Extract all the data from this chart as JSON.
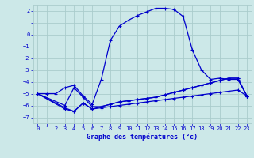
{
  "xlabel": "Graphe des températures (°c)",
  "bg_color": "#cce8e8",
  "grid_color": "#aacccc",
  "line_color": "#0000cc",
  "xlim": [
    -0.5,
    23.5
  ],
  "ylim": [
    -7.5,
    2.5
  ],
  "xticks": [
    0,
    1,
    2,
    3,
    4,
    5,
    6,
    7,
    8,
    9,
    10,
    11,
    12,
    13,
    14,
    15,
    16,
    17,
    18,
    19,
    20,
    21,
    22,
    23
  ],
  "yticks": [
    -7,
    -6,
    -5,
    -4,
    -3,
    -2,
    -1,
    0,
    1,
    2
  ],
  "line1_x": [
    0,
    1,
    2,
    3,
    4,
    5,
    6,
    7,
    8,
    9,
    10,
    11,
    12,
    13,
    14,
    15,
    16,
    17,
    18,
    19,
    20,
    21,
    22,
    23
  ],
  "line1_y": [
    -5.0,
    -5.0,
    -5.0,
    -4.5,
    -4.3,
    -5.2,
    -5.9,
    -3.8,
    -0.5,
    0.7,
    1.2,
    1.6,
    1.9,
    2.2,
    2.2,
    2.1,
    1.5,
    -1.3,
    -3.0,
    -3.8,
    -3.7,
    -3.8,
    -3.8,
    -5.2
  ],
  "line2_x": [
    0,
    3,
    4,
    5,
    6,
    7,
    8,
    9,
    10,
    11,
    12,
    13,
    14,
    15,
    16,
    17,
    18,
    19,
    20,
    21,
    22,
    23
  ],
  "line2_y": [
    -5.0,
    -6.0,
    -4.5,
    -5.3,
    -6.1,
    -6.1,
    -5.9,
    -5.7,
    -5.6,
    -5.5,
    -5.4,
    -5.3,
    -5.1,
    -4.9,
    -4.7,
    -4.5,
    -4.3,
    -4.1,
    -3.9,
    -3.7,
    -3.7,
    -5.2
  ],
  "line3_x": [
    0,
    3,
    4,
    5,
    6,
    7,
    8,
    9,
    10,
    11,
    12,
    13,
    14,
    15,
    16,
    17,
    18,
    19,
    20,
    21,
    22,
    23
  ],
  "line3_y": [
    -5.0,
    -6.2,
    -6.5,
    -5.8,
    -6.3,
    -6.1,
    -5.9,
    -5.7,
    -5.6,
    -5.5,
    -5.4,
    -5.3,
    -5.1,
    -4.9,
    -4.7,
    -4.5,
    -4.3,
    -4.1,
    -3.9,
    -3.7,
    -3.7,
    -5.2
  ],
  "line4_x": [
    0,
    3,
    4,
    5,
    6,
    7,
    8,
    9,
    10,
    11,
    12,
    13,
    14,
    15,
    16,
    17,
    18,
    19,
    20,
    21,
    22,
    23
  ],
  "line4_y": [
    -5.0,
    -6.3,
    -6.5,
    -5.8,
    -6.3,
    -6.2,
    -6.1,
    -6.0,
    -5.9,
    -5.8,
    -5.7,
    -5.6,
    -5.5,
    -5.4,
    -5.3,
    -5.2,
    -5.1,
    -5.0,
    -4.9,
    -4.8,
    -4.7,
    -5.2
  ]
}
